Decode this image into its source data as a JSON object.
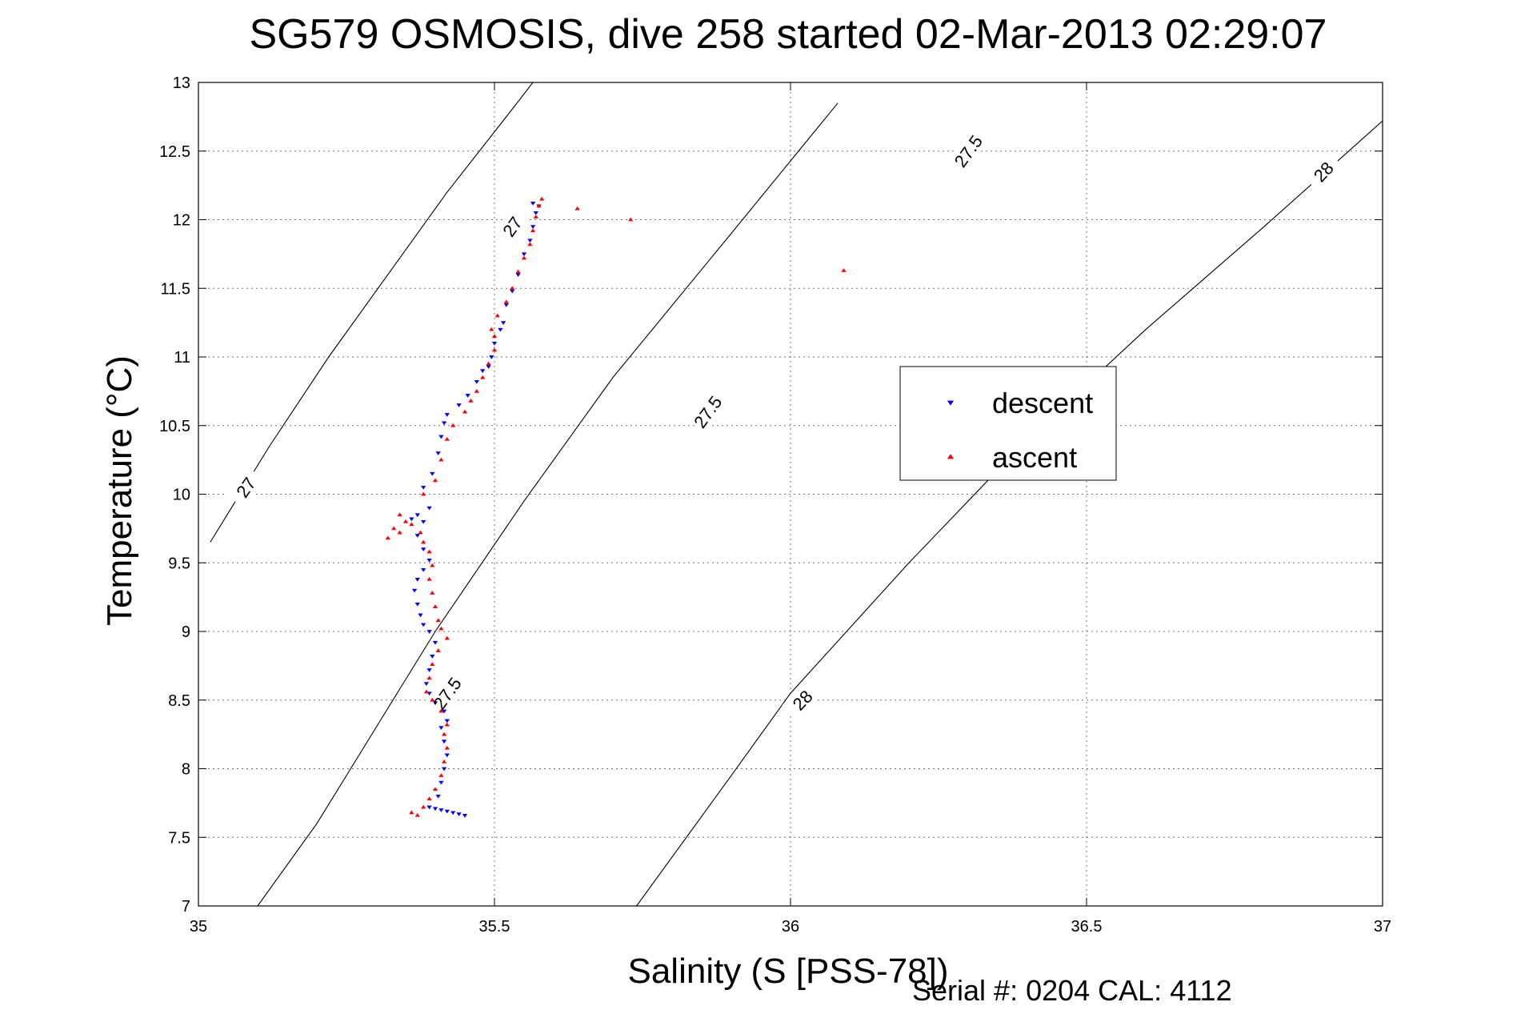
{
  "chart_data": {
    "type": "scatter",
    "title": "SG579 OSMOSIS, dive 258 started 02-Mar-2013 02:29:07",
    "xlabel": "Salinity (S [PSS-78])",
    "ylabel": "Temperature (°C)",
    "xlim": [
      35,
      37
    ],
    "ylim": [
      7,
      13
    ],
    "xticks": [
      "35",
      "35.5",
      "36",
      "36.5",
      "37"
    ],
    "yticks": [
      "7",
      "7.5",
      "8",
      "8.5",
      "9",
      "9.5",
      "10",
      "10.5",
      "11",
      "11.5",
      "12",
      "12.5",
      "13"
    ],
    "grid": true,
    "legend_placement": "center-right",
    "footer_text": "Serial #: 0204  CAL: 4112",
    "density_contours": [
      {
        "label": "27",
        "points": [
          [
            35.02,
            9.65
          ],
          [
            35.12,
            10.35
          ],
          [
            35.22,
            11.0
          ],
          [
            35.32,
            11.6
          ],
          [
            35.42,
            12.2
          ],
          [
            35.52,
            12.75
          ],
          [
            35.61,
            13.25
          ]
        ],
        "label_positions": [
          [
            35.08,
            10.05
          ],
          [
            35.53,
            11.95
          ]
        ]
      },
      {
        "label": "27.5",
        "points": [
          [
            35.1,
            7.0
          ],
          [
            35.2,
            7.6
          ],
          [
            35.3,
            8.3
          ],
          [
            35.4,
            9.0
          ],
          [
            35.55,
            9.95
          ],
          [
            35.7,
            10.85
          ],
          [
            35.9,
            11.9
          ],
          [
            36.08,
            12.85
          ]
        ],
        "label_positions": [
          [
            35.42,
            8.55
          ],
          [
            35.86,
            10.6
          ],
          [
            36.3,
            12.5
          ]
        ]
      },
      {
        "label": "28",
        "points": [
          [
            35.74,
            7.0
          ],
          [
            35.9,
            7.95
          ],
          [
            36.0,
            8.55
          ],
          [
            36.2,
            9.5
          ],
          [
            36.4,
            10.4
          ],
          [
            36.6,
            11.2
          ],
          [
            36.8,
            11.95
          ],
          [
            37.0,
            12.72
          ]
        ],
        "label_positions": [
          [
            36.02,
            8.5
          ],
          [
            36.9,
            12.35
          ]
        ]
      }
    ],
    "series": [
      {
        "name": "descent",
        "color": "#0000ff",
        "marker": "triangle-down",
        "points": [
          [
            35.45,
            7.66
          ],
          [
            35.44,
            7.67
          ],
          [
            35.43,
            7.68
          ],
          [
            35.42,
            7.69
          ],
          [
            35.41,
            7.7
          ],
          [
            35.4,
            7.71
          ],
          [
            35.39,
            7.72
          ],
          [
            35.405,
            7.8
          ],
          [
            35.41,
            7.9
          ],
          [
            35.415,
            8.0
          ],
          [
            35.42,
            8.1
          ],
          [
            35.415,
            8.2
          ],
          [
            35.41,
            8.3
          ],
          [
            35.42,
            8.35
          ],
          [
            35.415,
            8.42
          ],
          [
            35.4,
            8.48
          ],
          [
            35.39,
            8.55
          ],
          [
            35.385,
            8.62
          ],
          [
            35.39,
            8.72
          ],
          [
            35.395,
            8.82
          ],
          [
            35.4,
            8.92
          ],
          [
            35.39,
            9.0
          ],
          [
            35.38,
            9.05
          ],
          [
            35.375,
            9.12
          ],
          [
            35.37,
            9.2
          ],
          [
            35.365,
            9.3
          ],
          [
            35.37,
            9.38
          ],
          [
            35.38,
            9.45
          ],
          [
            35.39,
            9.52
          ],
          [
            35.38,
            9.6
          ],
          [
            35.37,
            9.7
          ],
          [
            35.38,
            9.8
          ],
          [
            35.39,
            9.9
          ],
          [
            35.37,
            9.85
          ],
          [
            35.36,
            9.82
          ],
          [
            35.38,
            10.05
          ],
          [
            35.395,
            10.15
          ],
          [
            35.405,
            10.3
          ],
          [
            35.41,
            10.42
          ],
          [
            35.415,
            10.52
          ],
          [
            35.42,
            10.58
          ],
          [
            35.44,
            10.65
          ],
          [
            35.455,
            10.72
          ],
          [
            35.47,
            10.82
          ],
          [
            35.48,
            10.9
          ],
          [
            35.49,
            10.93
          ],
          [
            35.495,
            11.0
          ],
          [
            35.5,
            11.1
          ],
          [
            35.51,
            11.2
          ],
          [
            35.515,
            11.25
          ],
          [
            35.52,
            11.38
          ],
          [
            35.53,
            11.48
          ],
          [
            35.54,
            11.6
          ],
          [
            35.55,
            11.75
          ],
          [
            35.56,
            11.85
          ],
          [
            35.565,
            11.95
          ],
          [
            35.57,
            12.05
          ],
          [
            35.575,
            12.1
          ],
          [
            35.565,
            12.12
          ]
        ]
      },
      {
        "name": "ascent",
        "color": "#ff0000",
        "marker": "triangle-up",
        "points": [
          [
            35.36,
            7.68
          ],
          [
            35.37,
            7.66
          ],
          [
            35.38,
            7.72
          ],
          [
            35.39,
            7.78
          ],
          [
            35.4,
            7.85
          ],
          [
            35.41,
            7.95
          ],
          [
            35.415,
            8.05
          ],
          [
            35.42,
            8.15
          ],
          [
            35.415,
            8.25
          ],
          [
            35.42,
            8.32
          ],
          [
            35.41,
            8.42
          ],
          [
            35.395,
            8.5
          ],
          [
            35.385,
            8.56
          ],
          [
            35.39,
            8.66
          ],
          [
            35.395,
            8.76
          ],
          [
            35.405,
            8.86
          ],
          [
            35.42,
            8.95
          ],
          [
            35.41,
            9.02
          ],
          [
            35.405,
            9.08
          ],
          [
            35.4,
            9.18
          ],
          [
            35.395,
            9.28
          ],
          [
            35.39,
            9.38
          ],
          [
            35.395,
            9.48
          ],
          [
            35.39,
            9.58
          ],
          [
            35.38,
            9.65
          ],
          [
            35.375,
            9.72
          ],
          [
            35.36,
            9.78
          ],
          [
            35.34,
            9.72
          ],
          [
            35.32,
            9.68
          ],
          [
            35.33,
            9.75
          ],
          [
            35.34,
            9.85
          ],
          [
            35.35,
            9.8
          ],
          [
            35.38,
            10.0
          ],
          [
            35.4,
            10.1
          ],
          [
            35.41,
            10.25
          ],
          [
            35.42,
            10.4
          ],
          [
            35.43,
            10.5
          ],
          [
            35.45,
            10.6
          ],
          [
            35.46,
            10.68
          ],
          [
            35.47,
            10.75
          ],
          [
            35.48,
            10.85
          ],
          [
            35.49,
            10.95
          ],
          [
            35.5,
            11.05
          ],
          [
            35.5,
            11.15
          ],
          [
            35.495,
            11.2
          ],
          [
            35.505,
            11.3
          ],
          [
            35.52,
            11.4
          ],
          [
            35.53,
            11.5
          ],
          [
            35.54,
            11.62
          ],
          [
            35.55,
            11.72
          ],
          [
            35.56,
            11.82
          ],
          [
            35.565,
            11.92
          ],
          [
            35.57,
            12.02
          ],
          [
            35.575,
            12.1
          ],
          [
            35.58,
            12.15
          ],
          [
            35.64,
            12.08
          ],
          [
            35.73,
            12.0
          ],
          [
            36.09,
            11.63
          ]
        ]
      }
    ]
  }
}
